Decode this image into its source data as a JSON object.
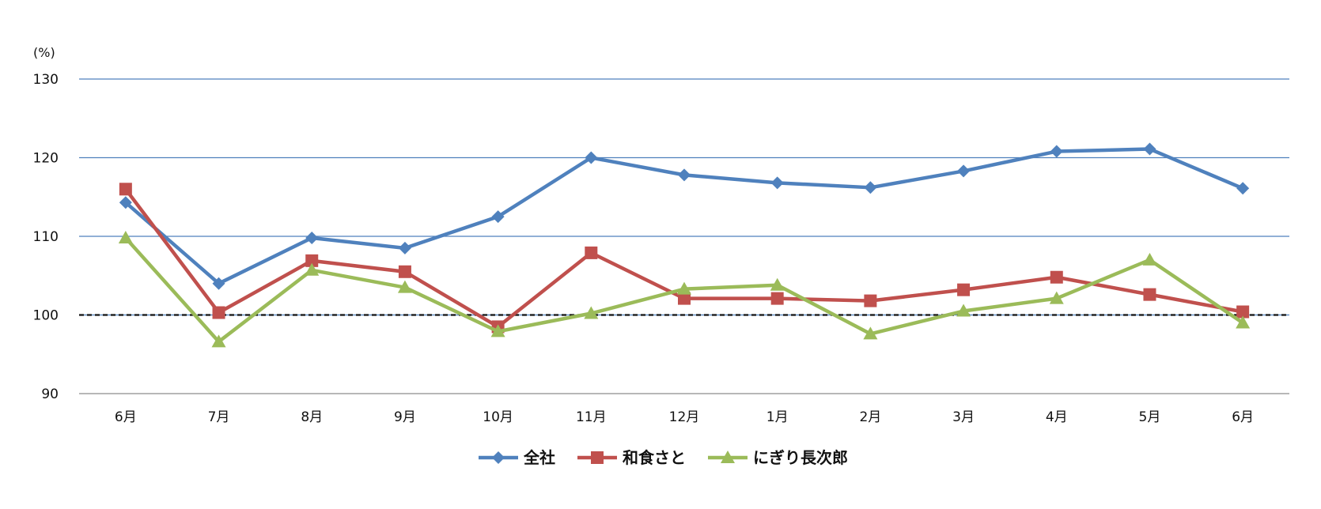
{
  "chart_data": {
    "type": "line",
    "unit_label": "(%)",
    "categories": [
      "6月",
      "7月",
      "8月",
      "9月",
      "10月",
      "11月",
      "12月",
      "1月",
      "2月",
      "3月",
      "4月",
      "5月",
      "6月"
    ],
    "ylim": [
      90,
      130
    ],
    "yticks": [
      "90",
      "100",
      "110",
      "120",
      "130"
    ],
    "reference_line": 100,
    "grid": true,
    "legend_position": "bottom",
    "series": [
      {
        "name": "全社",
        "color": "#4f81bd",
        "marker": "diamond",
        "values": [
          114.3,
          104.0,
          109.8,
          108.5,
          112.5,
          120.0,
          117.8,
          116.8,
          116.2,
          118.3,
          120.8,
          121.1,
          116.1
        ]
      },
      {
        "name": "和食さと",
        "color": "#c0504d",
        "marker": "square",
        "values": [
          116.0,
          100.3,
          106.9,
          105.5,
          98.5,
          107.9,
          102.1,
          102.1,
          101.8,
          103.2,
          104.8,
          102.6,
          100.4
        ]
      },
      {
        "name": "にぎり長次郎",
        "color": "#9bbb59",
        "marker": "triangle",
        "values": [
          109.8,
          96.6,
          105.7,
          103.5,
          97.9,
          100.2,
          103.3,
          103.8,
          97.6,
          100.5,
          102.1,
          107.0,
          99.0
        ]
      }
    ]
  }
}
